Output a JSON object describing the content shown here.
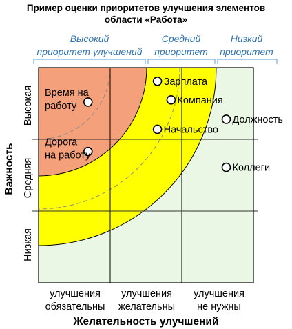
{
  "chart_data": {
    "type": "scatter",
    "title_line1": "Пример оценки приоритетов улучшения элементов",
    "title_line2": "области «Работа»",
    "xlabel": "Желательность улучшений",
    "ylabel": "Важность",
    "x_categories": [
      {
        "line1": "улучшения",
        "line2": "обязательны"
      },
      {
        "line1": "улучшения",
        "line2": "желательны"
      },
      {
        "line1": "улучшения",
        "line2": "не нужны"
      }
    ],
    "y_categories": [
      "Высокая",
      "Средняя",
      "Низкая"
    ],
    "xlim": [
      0,
      3
    ],
    "ylim": [
      0,
      3
    ],
    "zones": [
      {
        "line1": "Высокий",
        "line2": "приоритет улучшений",
        "color": "#f4a07a"
      },
      {
        "line1": "Средний",
        "line2": "приоритет",
        "color": "#ffff00"
      },
      {
        "line1": "Низкий",
        "line2": "приоритет",
        "color": "#e9f7e4"
      }
    ],
    "points": [
      {
        "label_lines": [
          "Время на",
          "работу"
        ],
        "x": 0.69,
        "y": 2.52
      },
      {
        "label_lines": [
          "Дорога",
          "на работу"
        ],
        "x": 0.69,
        "y": 1.83
      },
      {
        "label_lines": [
          "Зарплата"
        ],
        "x": 1.66,
        "y": 2.81
      },
      {
        "label_lines": [
          "Компания"
        ],
        "x": 1.85,
        "y": 2.55
      },
      {
        "label_lines": [
          "Начальство"
        ],
        "x": 1.66,
        "y": 2.14
      },
      {
        "label_lines": [
          "Должность"
        ],
        "x": 2.62,
        "y": 2.28
      },
      {
        "label_lines": [
          "Коллеги"
        ],
        "x": 2.62,
        "y": 1.61
      }
    ]
  }
}
